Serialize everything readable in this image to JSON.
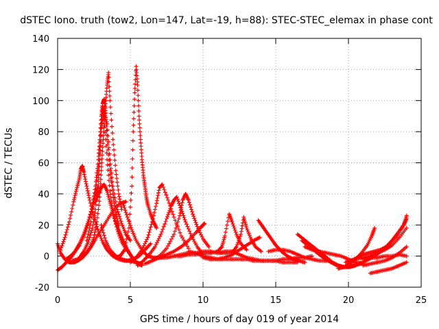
{
  "chart_data": {
    "type": "scatter",
    "title": "dSTEC Iono. truth (tow2, Lon=147, Lat=-19, h=88): STEC-STEC_elemax in phase cont",
    "xlabel": "GPS time / hours of day 019 of year 2014",
    "ylabel": "dSTEC  / TECUs",
    "xlim": [
      0,
      25
    ],
    "ylim": [
      -20,
      140
    ],
    "xticks": [
      0,
      5,
      10,
      15,
      20,
      25
    ],
    "yticks": [
      -20,
      0,
      20,
      40,
      60,
      80,
      100,
      120,
      140
    ],
    "grid": true,
    "marker": "+",
    "color": "#ff0000",
    "arcs": [
      {
        "x": [
          0.0,
          0.2,
          0.5,
          0.8,
          1.1,
          1.4,
          1.7,
          2.0,
          2.3,
          2.6,
          3.0,
          3.4,
          3.8,
          4.3,
          4.7
        ],
        "y": [
          8,
          2,
          -2,
          -4,
          -4,
          -3,
          -1,
          2,
          6,
          11,
          17,
          23,
          29,
          34,
          35
        ]
      },
      {
        "x": [
          0.0,
          0.3,
          0.6,
          0.9,
          1.2,
          1.5,
          1.8,
          2.1,
          2.4,
          2.6,
          2.8
        ],
        "y": [
          -9,
          -7,
          -4,
          -1,
          3,
          8,
          14,
          22,
          32,
          40,
          45
        ]
      },
      {
        "x": [
          0.2,
          0.5,
          0.8,
          1.1,
          1.3,
          1.5,
          1.6,
          1.7,
          1.8,
          2.0,
          2.2,
          2.5,
          2.8,
          3.1,
          3.4,
          3.8,
          4.2,
          4.6,
          5.0,
          5.4,
          5.8
        ],
        "y": [
          4,
          12,
          22,
          35,
          43,
          50,
          56,
          58,
          54,
          45,
          36,
          25,
          16,
          9,
          4,
          0,
          -2,
          -3,
          -3,
          -4,
          -5
        ]
      },
      {
        "x": [
          0.6,
          0.9,
          1.2,
          1.5,
          1.8,
          2.1,
          2.4,
          2.6,
          2.8,
          2.9,
          3.0,
          3.1,
          3.2,
          3.3,
          3.4,
          3.6,
          3.8,
          4.0,
          4.2
        ],
        "y": [
          -2,
          0,
          3,
          7,
          13,
          21,
          32,
          45,
          62,
          75,
          90,
          98,
          101,
          92,
          75,
          55,
          40,
          28,
          20
        ]
      },
      {
        "x": [
          1.0,
          1.4,
          1.8,
          2.2,
          2.5,
          2.7,
          2.9,
          3.0,
          3.1,
          3.2,
          3.3,
          3.4,
          3.5,
          3.6,
          3.8,
          4.0,
          4.2,
          4.4
        ],
        "y": [
          -3,
          -2,
          0,
          5,
          12,
          22,
          38,
          55,
          70,
          85,
          98,
          110,
          118,
          100,
          75,
          55,
          40,
          30
        ]
      },
      {
        "x": [
          1.5,
          1.8,
          2.1,
          2.4,
          2.6,
          2.8,
          2.9,
          3.0,
          3.1,
          3.2,
          3.4,
          3.6,
          3.8,
          4.1,
          4.4,
          4.8
        ],
        "y": [
          -1,
          3,
          9,
          18,
          30,
          48,
          62,
          80,
          96,
          88,
          62,
          42,
          28,
          17,
          9,
          3
        ]
      },
      {
        "x": [
          2.0,
          2.3,
          2.6,
          2.8,
          3.0,
          3.2,
          3.4,
          3.6,
          3.8,
          4.1,
          4.4,
          4.7,
          5.0
        ],
        "y": [
          10,
          22,
          40,
          58,
          82,
          93,
          85,
          62,
          45,
          30,
          21,
          14,
          10
        ]
      },
      {
        "x": [
          2.6,
          2.8,
          3.0,
          3.2,
          3.4,
          3.6,
          3.8,
          4.0,
          4.2,
          4.4,
          4.6,
          4.8,
          5.0,
          5.2,
          5.4,
          5.6,
          5.8
        ],
        "y": [
          35,
          40,
          44,
          46,
          42,
          35,
          28,
          22,
          17,
          12,
          8,
          4,
          1,
          -2,
          -4,
          -5,
          -6
        ]
      },
      {
        "x": [
          3.0,
          3.3,
          3.6,
          4.0,
          4.4,
          4.8,
          5.2,
          5.6,
          6.0,
          6.4
        ],
        "y": [
          20,
          10,
          4,
          0,
          -2,
          -3,
          -2,
          0,
          4,
          8
        ]
      },
      {
        "x": [
          4.5,
          4.8,
          5.1,
          5.4,
          5.8,
          6.2,
          6.6,
          7.0,
          7.4
        ],
        "y": [
          34,
          25,
          17,
          10,
          4,
          0,
          -1,
          -1,
          0
        ]
      },
      {
        "x": [
          4.0,
          4.3,
          4.6,
          4.9,
          5.1,
          5.2,
          5.3,
          5.4,
          5.5,
          5.6,
          5.7,
          5.8,
          5.9,
          6.0,
          6.1,
          6.2,
          6.4,
          6.6,
          6.8
        ],
        "y": [
          -1,
          0,
          4,
          18,
          45,
          80,
          105,
          122,
          110,
          90,
          75,
          62,
          52,
          45,
          38,
          33,
          27,
          22,
          18
        ]
      },
      {
        "x": [
          5.0,
          5.4,
          5.8,
          6.2,
          6.5,
          6.8,
          7.0,
          7.2,
          7.6,
          8.0,
          8.5,
          9.0
        ],
        "y": [
          -4,
          -1,
          4,
          12,
          22,
          34,
          44,
          46,
          36,
          25,
          13,
          5
        ]
      },
      {
        "x": [
          5.5,
          5.9,
          6.3,
          6.7,
          7.1,
          7.5,
          7.8,
          8.0,
          8.2,
          8.5,
          8.8,
          9.2,
          9.6,
          10.0
        ],
        "y": [
          -6,
          -3,
          1,
          6,
          14,
          24,
          32,
          36,
          38,
          30,
          22,
          13,
          6,
          1
        ]
      },
      {
        "x": [
          6.0,
          6.5,
          7.0,
          7.5,
          8.0,
          8.4,
          8.6,
          8.8,
          9.0,
          9.3,
          9.6,
          10.0,
          10.4
        ],
        "y": [
          -5,
          -3,
          0,
          5,
          14,
          26,
          36,
          40,
          36,
          27,
          19,
          11,
          6
        ]
      },
      {
        "x": [
          6.5,
          7.0,
          7.5,
          8.0,
          8.5,
          9.0,
          9.5,
          9.9,
          10.1
        ],
        "y": [
          -3,
          -1,
          1,
          3,
          6,
          10,
          15,
          19,
          21
        ]
      },
      {
        "x": [
          7.0,
          7.5,
          8.0,
          8.5,
          9.0,
          9.5,
          10.0,
          10.5,
          11.0,
          11.3,
          11.5,
          11.8,
          12.0,
          12.3,
          12.6,
          13.0
        ],
        "y": [
          -1,
          -1,
          0,
          0,
          1,
          1,
          2,
          2,
          3,
          6,
          13,
          27,
          22,
          14,
          8,
          4
        ]
      },
      {
        "x": [
          8.0,
          8.5,
          9.0,
          9.5,
          10.0,
          10.5,
          11.0,
          11.5,
          12.0,
          12.3,
          12.6,
          12.8,
          13.0,
          13.3,
          13.6,
          14.0
        ],
        "y": [
          0,
          1,
          2,
          2,
          3,
          3,
          2,
          2,
          2,
          6,
          14,
          25,
          18,
          11,
          6,
          3
        ]
      },
      {
        "x": [
          9.0,
          9.5,
          10.0,
          10.5,
          11.0,
          11.5,
          12.0,
          12.5,
          13.0,
          13.5,
          13.9
        ],
        "y": [
          3,
          2,
          0,
          -1,
          -2,
          -1,
          1,
          4,
          7,
          10,
          12
        ]
      },
      {
        "x": [
          10.0,
          10.5,
          11.0,
          11.5,
          12.0,
          12.5,
          13.0,
          13.5,
          14.0,
          14.5,
          15.0,
          15.5,
          16.0,
          16.5
        ],
        "y": [
          -1,
          -2,
          -2,
          -2,
          -2,
          -2,
          -2,
          -3,
          -3,
          -3,
          -3,
          -4,
          -4,
          -4
        ]
      },
      {
        "x": [
          11.0,
          11.5,
          12.0,
          12.5,
          13.0,
          13.5,
          14.0,
          14.5,
          15.0,
          15.5,
          16.0,
          16.5,
          17.0,
          17.5
        ],
        "y": [
          2,
          3,
          3,
          1,
          -1,
          -2,
          -3,
          -3,
          -3,
          -2,
          -2,
          -1,
          -1,
          0
        ]
      },
      {
        "x": [
          13.8,
          14.1,
          14.4,
          14.7,
          15.0,
          15.4,
          15.8,
          16.2,
          16.6,
          17.0
        ],
        "y": [
          23,
          19,
          15,
          11,
          7,
          3,
          0,
          -2,
          -3,
          -4
        ]
      },
      {
        "x": [
          14.5,
          15.0,
          15.5,
          16.0,
          16.5,
          17.0,
          17.5,
          18.0,
          18.5
        ],
        "y": [
          3,
          4,
          4,
          3,
          1,
          -1,
          -2,
          -3,
          -3
        ]
      },
      {
        "x": [
          16.5,
          16.9,
          17.3,
          17.7,
          18.1,
          18.5,
          18.9,
          19.3,
          19.7,
          20.1,
          20.5
        ],
        "y": [
          14,
          11,
          8,
          5,
          2,
          -1,
          -4,
          -6,
          -7,
          -7,
          -6
        ]
      },
      {
        "x": [
          16.8,
          17.2,
          17.6,
          18.0,
          18.4,
          18.8,
          19.2,
          19.6,
          20.0,
          20.4,
          20.8
        ],
        "y": [
          10,
          7,
          4,
          1,
          -2,
          -4,
          -6,
          -7,
          -7,
          -6,
          -5
        ]
      },
      {
        "x": [
          17.0,
          17.5,
          18.0,
          18.5,
          19.0,
          19.5,
          20.0,
          20.5,
          21.0
        ],
        "y": [
          6,
          4,
          3,
          2,
          1,
          0,
          -2,
          -4,
          -5
        ]
      },
      {
        "x": [
          19.3,
          19.7,
          20.1,
          20.5,
          20.9,
          21.3,
          21.6,
          21.8
        ],
        "y": [
          -8,
          -7,
          -5,
          -2,
          2,
          7,
          13,
          18
        ]
      },
      {
        "x": [
          19.8,
          20.2,
          20.6,
          21.0,
          21.4,
          21.8,
          22.2,
          22.6,
          23.0,
          23.4,
          23.8,
          24.0
        ],
        "y": [
          -4,
          -3,
          -1,
          1,
          2,
          3,
          4,
          6,
          10,
          15,
          20,
          24
        ]
      },
      {
        "x": [
          20.0,
          20.5,
          21.0,
          21.5,
          22.0,
          22.5,
          23.0,
          23.5,
          24.0
        ],
        "y": [
          -3,
          -2,
          -1,
          0,
          2,
          4,
          7,
          12,
          18
        ]
      },
      {
        "x": [
          20.6,
          21.0,
          21.4,
          21.8,
          22.2,
          22.6,
          23.0,
          23.4,
          23.8,
          24.0
        ],
        "y": [
          -5,
          -4,
          -2,
          0,
          3,
          6,
          10,
          14,
          20,
          26
        ]
      },
      {
        "x": [
          21.0,
          21.5,
          22.0,
          22.5,
          23.0,
          23.5,
          24.0
        ],
        "y": [
          -6,
          -5,
          -4,
          -3,
          -1,
          2,
          6
        ]
      },
      {
        "x": [
          21.5,
          22.0,
          22.5,
          23.0,
          23.5,
          24.0
        ],
        "y": [
          -11,
          -10,
          -9,
          -8,
          -6,
          -4
        ]
      },
      {
        "x": [
          21.0,
          21.5,
          22.0,
          22.5,
          23.0,
          23.5,
          24.0
        ],
        "y": [
          -2,
          -1,
          -1,
          0,
          0,
          1,
          0
        ]
      }
    ]
  }
}
